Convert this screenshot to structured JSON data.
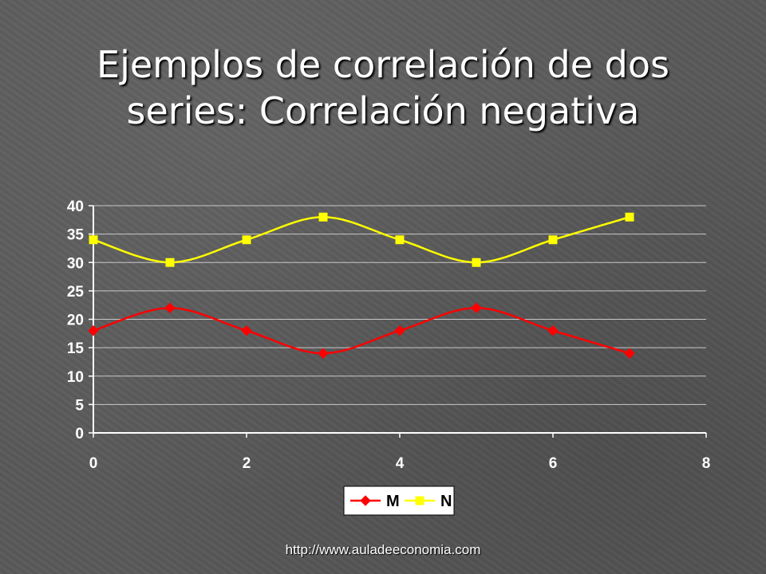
{
  "slide": {
    "title": "Ejemplos de correlación de dos series: Correlación negativa",
    "footer": "http://www.auladeeconomia.com"
  },
  "chart_data": {
    "type": "scatter",
    "title": "",
    "xlabel": "",
    "ylabel": "",
    "xlim": [
      0,
      8
    ],
    "ylim": [
      0,
      40
    ],
    "xticks": [
      0,
      2,
      4,
      6,
      8
    ],
    "yticks": [
      0,
      5,
      10,
      15,
      20,
      25,
      30,
      35,
      40
    ],
    "grid": "horizontal",
    "legend": "bottom",
    "smoothed_lines": true,
    "series": [
      {
        "name": "M",
        "color": "#ff0000",
        "marker": "diamond",
        "x": [
          0,
          1,
          2,
          3,
          4,
          5,
          6,
          7
        ],
        "y": [
          18,
          22,
          18,
          14,
          18,
          22,
          18,
          14
        ]
      },
      {
        "name": "N",
        "color": "#ffff00",
        "marker": "square",
        "x": [
          0,
          1,
          2,
          3,
          4,
          5,
          6,
          7
        ],
        "y": [
          34,
          30,
          34,
          38,
          34,
          30,
          34,
          38
        ]
      }
    ]
  }
}
